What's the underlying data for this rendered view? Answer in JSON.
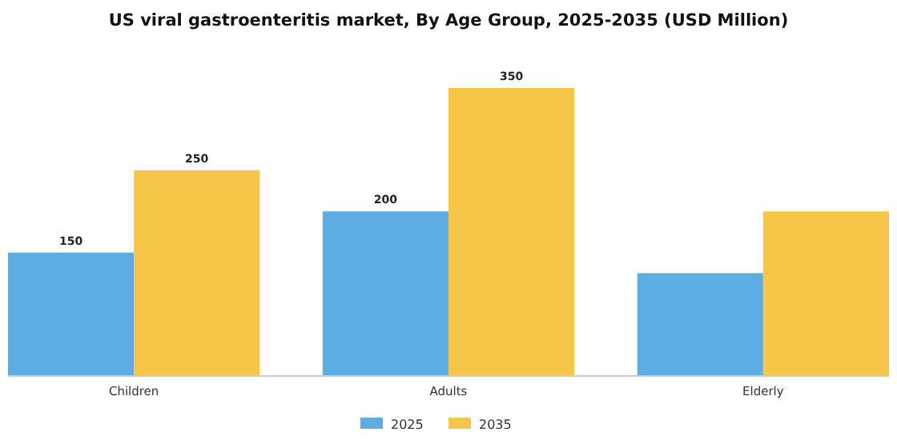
{
  "chart_data": {
    "type": "bar",
    "title": "US viral gastroenteritis market, By Age Group, 2025-2035 (USD Million)",
    "categories": [
      "Children",
      "Adults",
      "Elderly"
    ],
    "series": [
      {
        "name": "2025",
        "color": "#5dade2",
        "values": [
          150,
          200,
          125
        ],
        "value_labels": [
          "150",
          "200",
          null
        ]
      },
      {
        "name": "2035",
        "color": "#f7c548",
        "values": [
          250,
          350,
          200
        ],
        "value_labels": [
          "250",
          "350",
          null
        ]
      }
    ],
    "legend": "bottom"
  }
}
